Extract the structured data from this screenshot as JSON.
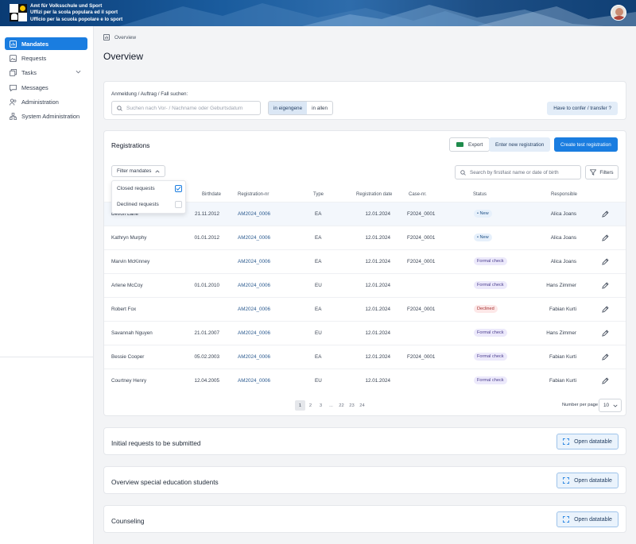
{
  "header": {
    "org_lines": [
      "Amt für Volksschule und Sport",
      "Uffizi per la scola populara ed il sport",
      "Ufficio per la scuola popolare e lo sport"
    ]
  },
  "sidebar": {
    "items": [
      {
        "label": "Mandates",
        "icon": "chart-icon",
        "active": true
      },
      {
        "label": "Requests",
        "icon": "image-icon"
      },
      {
        "label": "Tasks",
        "icon": "copy-icon",
        "has_chevron": true
      },
      {
        "label": "Messages",
        "icon": "chat-icon"
      },
      {
        "label": "Administration",
        "icon": "users-icon"
      },
      {
        "label": "System Administration",
        "icon": "network-icon"
      }
    ]
  },
  "breadcrumb": {
    "label": "Overview"
  },
  "page_title": "Overview",
  "search_panel": {
    "label": "Anmeldung / Auftrag / Fall suchen:",
    "placeholder": "Suchen nach Vor- / Nachname oder Geburtsdatum",
    "toggle_on": "in eigengene",
    "toggle_off": "in allen",
    "confer_button": "Have to confer / transfer ?"
  },
  "registrations": {
    "title": "Registrations",
    "export_label": "Export",
    "enter_label": "Enter new registration",
    "create_label": "Create test registration",
    "filter_mandates_label": "Filter mandates",
    "search_placeholder": "Search by first/last name or date of birth",
    "filters_label": "Filters",
    "dropdown": {
      "closed": "Closed requests",
      "declined": "Declined requests",
      "closed_checked": true,
      "declined_checked": false
    },
    "columns": {
      "birthdate": "Birthdate",
      "registration_nr": "Registration-nr",
      "type": "Type",
      "registration_date": "Registration date",
      "case_nr": "Case-nr.",
      "status": "Status",
      "responsible": "Responsible"
    },
    "rows": [
      {
        "name": "Devon Lane",
        "birthdate": "21.11.2012",
        "reg_nr": "AM2024_0006",
        "type": "EA",
        "reg_date": "12.01.2024",
        "case_nr": "F2024_0001",
        "status": "New",
        "status_kind": "new",
        "responsible": "Alica Joans"
      },
      {
        "name": "Kathryn Murphy",
        "birthdate": "01.01.2012",
        "reg_nr": "AM2024_0006",
        "type": "EA",
        "reg_date": "12.01.2024",
        "case_nr": "F2024_0001",
        "status": "New",
        "status_kind": "new",
        "responsible": "Alica Joans"
      },
      {
        "name": "Marvin McKinney",
        "birthdate": "",
        "reg_nr": "AM2024_0006",
        "type": "EA",
        "reg_date": "12.01.2024",
        "case_nr": "F2024_0001",
        "status": "Formal check",
        "status_kind": "formal",
        "responsible": "Alica Joans"
      },
      {
        "name": "Arlene McCoy",
        "birthdate": "01.01.2010",
        "reg_nr": "AM2024_0006",
        "type": "EU",
        "reg_date": "12.01.2024",
        "case_nr": "",
        "status": "Formal check",
        "status_kind": "formal",
        "responsible": "Hans Zimmer"
      },
      {
        "name": "Robert Fox",
        "birthdate": "",
        "reg_nr": "AM2024_0006",
        "type": "EA",
        "reg_date": "12.01.2024",
        "case_nr": "F2024_0001",
        "status": "Declined",
        "status_kind": "declined",
        "responsible": "Fabian Kurti"
      },
      {
        "name": "Savannah Nguyen",
        "birthdate": "21.01.2007",
        "reg_nr": "AM2024_0006",
        "type": "EU",
        "reg_date": "12.01.2024",
        "case_nr": "",
        "status": "Formal check",
        "status_kind": "formal",
        "responsible": "Hans Zimmer"
      },
      {
        "name": "Bessie Cooper",
        "birthdate": "05.02.2003",
        "reg_nr": "AM2024_0006",
        "type": "EA",
        "reg_date": "12.01.2024",
        "case_nr": "F2024_0001",
        "status": "Formal check",
        "status_kind": "formal",
        "responsible": "Fabian Kurti"
      },
      {
        "name": "Courtney Henry",
        "birthdate": "12.04.2005",
        "reg_nr": "AM2024_0006",
        "type": "EU",
        "reg_date": "12.01.2024",
        "case_nr": "",
        "status": "Formal check",
        "status_kind": "formal",
        "responsible": "Fabian Kurti"
      }
    ],
    "pagination": {
      "pages": [
        "1",
        "2",
        "3",
        "...",
        "22",
        "23",
        "24"
      ],
      "current": "1"
    },
    "per_page_label": "Number per page",
    "per_page_value": "10"
  },
  "sections": [
    {
      "title": "Initial requests to be submitted",
      "button": "Open datatable"
    },
    {
      "title": "Overview special education students",
      "button": "Open datatable"
    },
    {
      "title": "Counseling",
      "button": "Open datatable"
    }
  ],
  "colors": {
    "accent": "#1a7de0",
    "banner": "#1a5c9e"
  }
}
